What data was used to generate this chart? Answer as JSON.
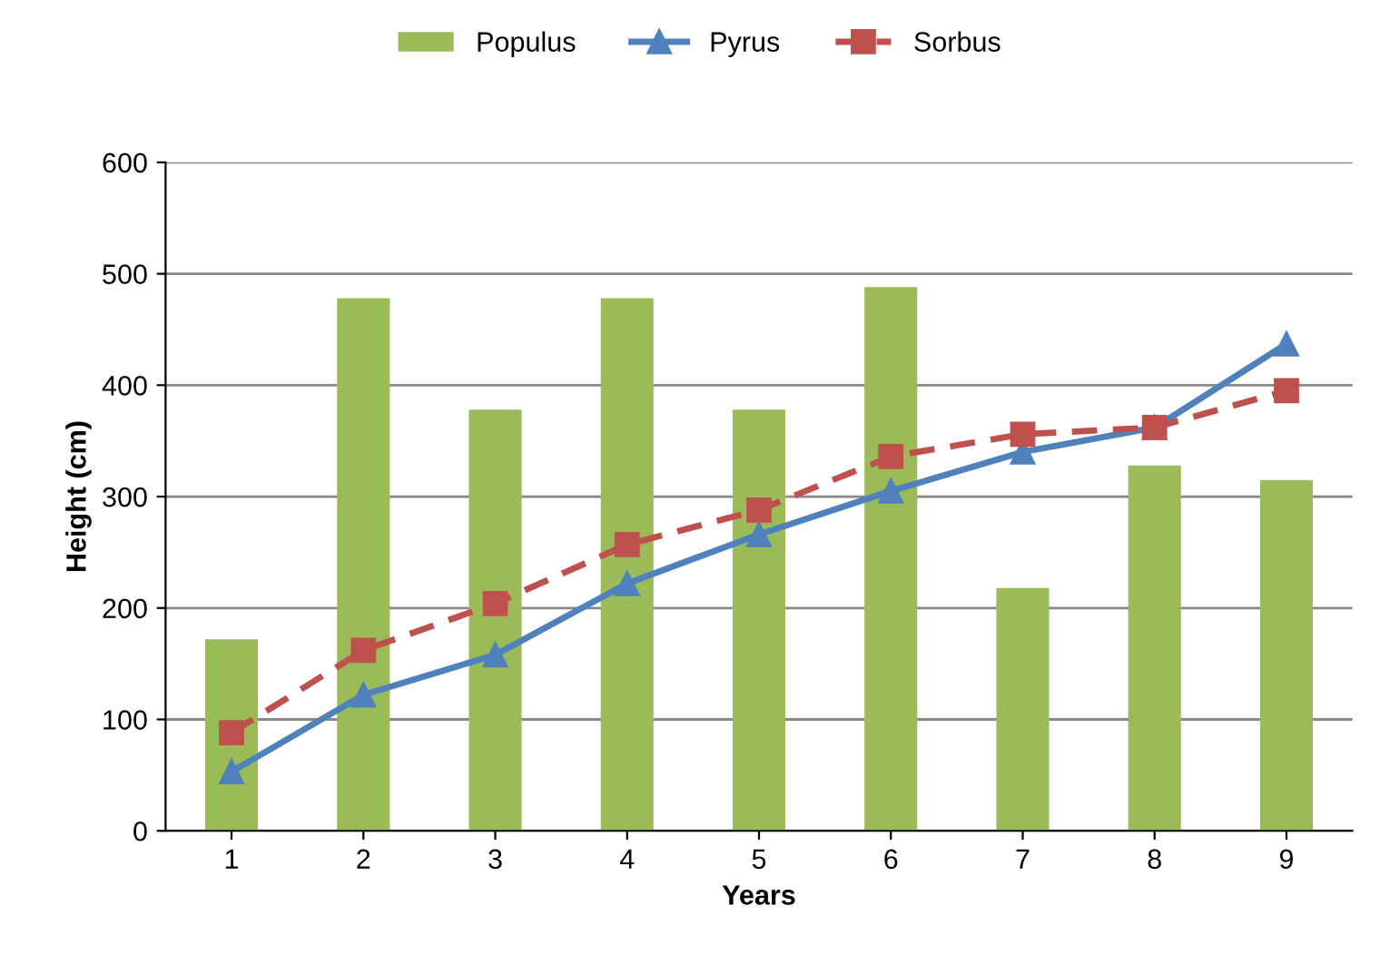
{
  "chart_data": {
    "type": "bar",
    "xlabel": "Years",
    "ylabel": "Height (cm)",
    "categories": [
      "1",
      "2",
      "3",
      "4",
      "5",
      "6",
      "7",
      "8",
      "9"
    ],
    "series": [
      {
        "name": "Populus",
        "color": "#9bbb59",
        "values": [
          172,
          478,
          378,
          478,
          378,
          488,
          218,
          328,
          315
        ]
      },
      {
        "name": "Pyrus",
        "type": "line",
        "color": "#4f81bd",
        "marker": "triangle",
        "line_style": "solid",
        "values": [
          53,
          122,
          158,
          222,
          266,
          305,
          340,
          362,
          437
        ]
      },
      {
        "name": "Sorbus",
        "type": "line",
        "color": "#c0504d",
        "marker": "square",
        "line_style": "dashed",
        "values": [
          88,
          162,
          204,
          257,
          288,
          336,
          356,
          362,
          395
        ]
      }
    ],
    "ylim": [
      0,
      600
    ],
    "yticks": [
      0,
      100,
      200,
      300,
      400,
      500,
      600
    ],
    "grid": "y",
    "legend": "top"
  }
}
